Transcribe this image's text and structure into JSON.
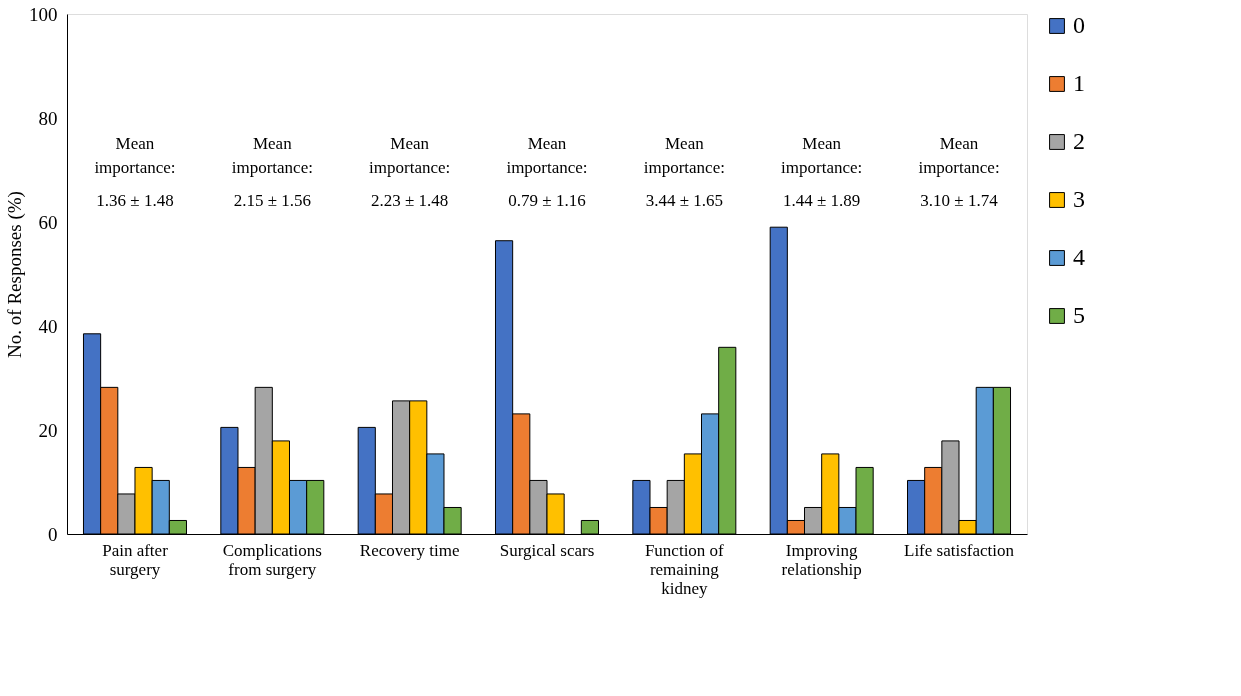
{
  "chart_data": {
    "type": "bar",
    "categories": [
      "Pain after\nsurgery",
      "Complications\nfrom surgery",
      "Recovery time",
      "Surgical scars",
      "Function of\nremaining\nkidney",
      "Improving\nrelationship",
      "Life satisfaction"
    ],
    "ylabel": "No. of Responses (%)",
    "ylim": [
      0,
      100
    ],
    "yticks": [
      0,
      20,
      40,
      60,
      80,
      100
    ],
    "grid": false,
    "legend": "right",
    "series": [
      {
        "name": "0",
        "color": "#4472c4",
        "values": [
          38.5,
          20.5,
          20.5,
          56.4,
          10.3,
          59.0,
          10.3
        ]
      },
      {
        "name": "1",
        "color": "#ed7d31",
        "values": [
          28.2,
          12.8,
          7.7,
          23.1,
          5.1,
          2.6,
          12.8
        ]
      },
      {
        "name": "2",
        "color": "#a5a5a5",
        "values": [
          7.7,
          28.2,
          25.6,
          10.3,
          10.3,
          5.1,
          17.9
        ]
      },
      {
        "name": "3",
        "color": "#ffc000",
        "values": [
          12.8,
          17.9,
          25.6,
          7.7,
          15.4,
          15.4,
          2.6
        ]
      },
      {
        "name": "4",
        "color": "#5b9bd5",
        "values": [
          10.3,
          10.3,
          15.4,
          null,
          23.1,
          5.1,
          28.2
        ]
      },
      {
        "name": "5",
        "color": "#70ad47",
        "values": [
          2.6,
          10.3,
          5.1,
          2.6,
          35.9,
          12.8,
          28.2
        ]
      }
    ],
    "annotations": [
      "Mean\nimportance:",
      "1.36 ± 1.48",
      "Mean\nimportance:",
      "2.15 ± 1.56",
      "Mean\nimportance:",
      "2.23 ± 1.48",
      "Mean\nimportance:",
      "0.79 ± 1.16",
      "Mean\nimportance:",
      "3.44 ± 1.65",
      "Mean\nimportance:",
      "1.44 ± 1.89",
      "Mean\nimportance:",
      "3.10 ± 1.74"
    ]
  }
}
